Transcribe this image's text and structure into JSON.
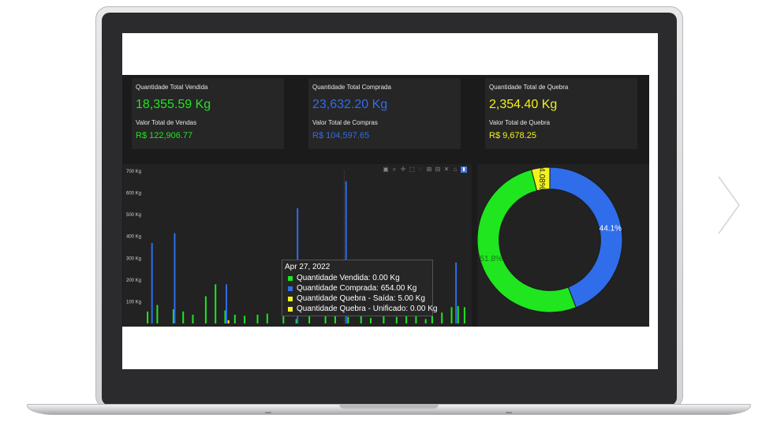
{
  "kpis": [
    {
      "label": "Quantidade Total Vendida",
      "quantity": "18,355.59 Kg",
      "value_label": "Valor Total de Vendas",
      "value": "R$ 122,906.77",
      "color": "#1fe61f"
    },
    {
      "label": "Quantidade Total Comprada",
      "quantity": "23,632.20 Kg",
      "value_label": "Valor Total de Compras",
      "value": "R$ 104,597.65",
      "color": "#2f6dea"
    },
    {
      "label": "Quantidade Total de Quebra",
      "quantity": "2,354.40 Kg",
      "value_label": "Valor Total de Quebra",
      "value": "R$ 9,678.25",
      "color": "#f2f21c"
    }
  ],
  "chart_data": [
    {
      "type": "bar",
      "y_tick_labels": [
        "700 Kg",
        "600 Kg",
        "500 Kg",
        "400 Kg",
        "300 Kg",
        "200 Kg",
        "100 Kg"
      ],
      "ylim": [
        0,
        700
      ],
      "series": [
        {
          "name": "Quantidade Vendida",
          "color": "#1fe61f",
          "points": [
            [
              1,
              55
            ],
            [
              4,
              85
            ],
            [
              9,
              65
            ],
            [
              12,
              55
            ],
            [
              15,
              40
            ],
            [
              19,
              125
            ],
            [
              22,
              180
            ],
            [
              25,
              60
            ],
            [
              28,
              40
            ],
            [
              31,
              35
            ],
            [
              35,
              40
            ],
            [
              38,
              45
            ],
            [
              43,
              40
            ],
            [
              47,
              20
            ],
            [
              51,
              70
            ],
            [
              56,
              35
            ],
            [
              59,
              40
            ],
            [
              63,
              30
            ],
            [
              67,
              35
            ],
            [
              70,
              25
            ],
            [
              74,
              60
            ],
            [
              78,
              30
            ],
            [
              81,
              40
            ],
            [
              84,
              35
            ],
            [
              87,
              20
            ],
            [
              89,
              35
            ],
            [
              92,
              50
            ],
            [
              95,
              75
            ],
            [
              97,
              80
            ],
            [
              99,
              75
            ]
          ]
        },
        {
          "name": "Quantidade Comprada",
          "color": "#2f6dea",
          "points": [
            [
              2,
              370
            ],
            [
              9,
              415
            ],
            [
              25,
              180
            ],
            [
              47,
              530
            ],
            [
              62,
              654
            ],
            [
              96,
              280
            ]
          ]
        },
        {
          "name": "Quantidade Quebra - Saída",
          "color": "#f2f21c",
          "points": [
            [
              26,
              15
            ]
          ]
        },
        {
          "name": "Quantidade Quebra - Unificado",
          "color": "#f2f21c",
          "points": []
        }
      ]
    },
    {
      "type": "pie",
      "hole": 0.7,
      "slices": [
        {
          "label": "44.1%",
          "value": 44.1,
          "color": "#2f6dea"
        },
        {
          "label": "51.8%",
          "value": 51.8,
          "color": "#1fe61f"
        },
        {
          "label": "4.08%",
          "value": 4.08,
          "color": "#f2f21c"
        }
      ]
    }
  ],
  "toolbar_icons": [
    "camera-icon",
    "zoom-icon",
    "pan-icon",
    "box-select-icon",
    "lasso-icon",
    "zoom-in-icon",
    "zoom-out-icon",
    "autoscale-icon",
    "reset-axes-icon",
    "plotly-logo-icon"
  ],
  "tooltip": {
    "date": "Apr 27, 2022",
    "rows": [
      {
        "text": "Quantidade Vendida: 0.00 Kg",
        "color": "#1fe61f"
      },
      {
        "text": "Quantidade Comprada: 654.00 Kg",
        "color": "#2f6dea"
      },
      {
        "text": "Quantidade Quebra - Saída: 5.00 Kg",
        "color": "#f2f21c"
      },
      {
        "text": "Quantidade Quebra - Unificado: 0.00 Kg",
        "color": "#f2f21c"
      }
    ]
  }
}
